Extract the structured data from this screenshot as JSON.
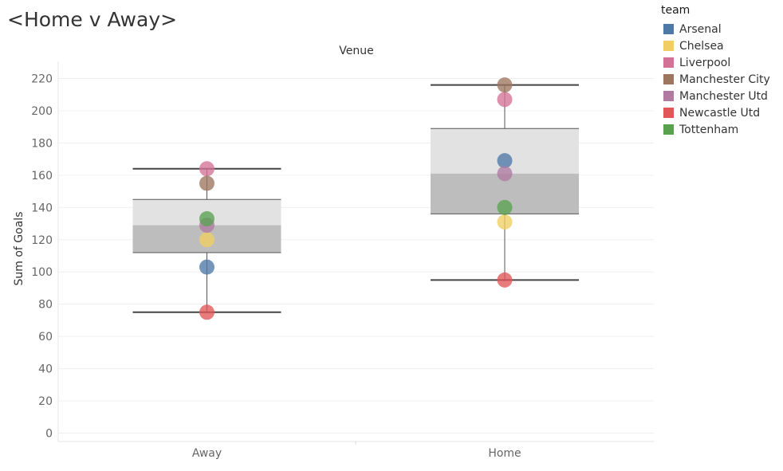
{
  "sheet_title": "<Home v Away>",
  "legend": {
    "title": "team",
    "items": [
      {
        "label": "Arsenal",
        "color": "#4e79a7"
      },
      {
        "label": "Chelsea",
        "color": "#f1ce63"
      },
      {
        "label": "Liverpool",
        "color": "#d37295"
      },
      {
        "label": "Manchester City",
        "color": "#9d7660"
      },
      {
        "label": "Manchester Utd",
        "color": "#b07aa1"
      },
      {
        "label": "Newcastle Utd",
        "color": "#e15759"
      },
      {
        "label": "Tottenham",
        "color": "#59a14f"
      }
    ]
  },
  "chart_data": {
    "type": "scatter",
    "subtype": "box-plot with dots",
    "header": "Venue",
    "ylabel": "Sum of Goals",
    "ylim": [
      0,
      225
    ],
    "yticks": [
      0,
      20,
      40,
      60,
      80,
      100,
      120,
      140,
      160,
      180,
      200,
      220
    ],
    "categories": [
      "Away",
      "Home"
    ],
    "grid": true,
    "legend_position": "top-right",
    "boxes": [
      {
        "category": "Away",
        "min": 75,
        "q1": 112,
        "median": 129,
        "q3": 145,
        "max": 164
      },
      {
        "category": "Home",
        "min": 95,
        "q1": 136,
        "median": 161,
        "q3": 189,
        "max": 216
      }
    ],
    "series": [
      {
        "name": "Arsenal",
        "values": [
          103,
          169
        ]
      },
      {
        "name": "Chelsea",
        "values": [
          120,
          131
        ]
      },
      {
        "name": "Liverpool",
        "values": [
          164,
          207
        ]
      },
      {
        "name": "Manchester City",
        "values": [
          155,
          216
        ]
      },
      {
        "name": "Manchester Utd",
        "values": [
          129,
          161
        ]
      },
      {
        "name": "Newcastle Utd",
        "values": [
          75,
          95
        ]
      },
      {
        "name": "Tottenham",
        "values": [
          133,
          140
        ]
      }
    ]
  }
}
